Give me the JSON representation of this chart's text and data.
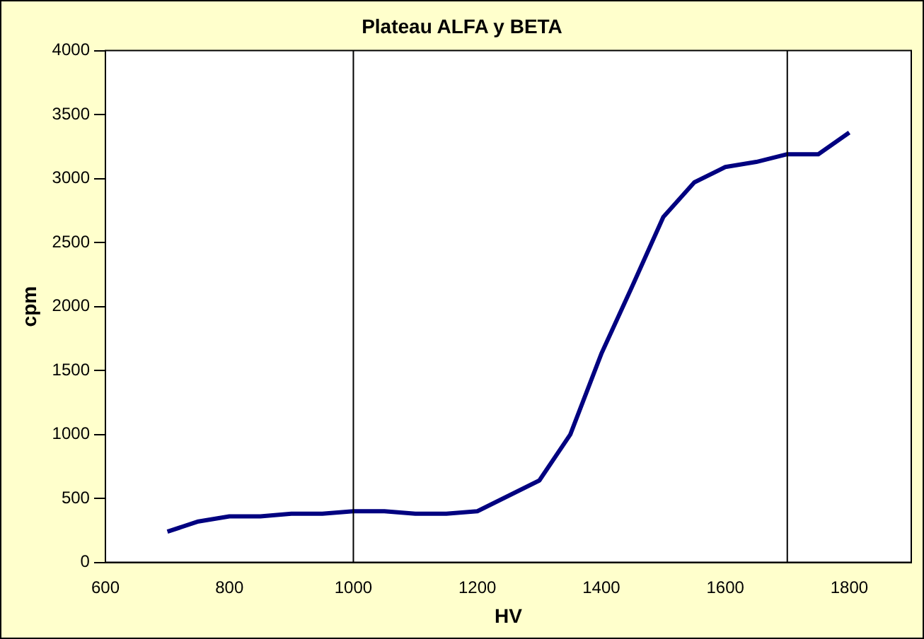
{
  "chart_data": {
    "type": "line",
    "title": "Plateau ALFA y BETA",
    "xlabel": "HV",
    "ylabel": "cpm",
    "x": [
      700,
      750,
      800,
      850,
      900,
      950,
      1000,
      1050,
      1100,
      1150,
      1200,
      1250,
      1300,
      1350,
      1400,
      1450,
      1500,
      1550,
      1600,
      1650,
      1700,
      1750,
      1800
    ],
    "series": [
      {
        "color": "#000080",
        "values": [
          240,
          320,
          360,
          360,
          380,
          380,
          400,
          400,
          380,
          380,
          400,
          520,
          640,
          1000,
          1630,
          2160,
          2700,
          2970,
          3090,
          3130,
          3190,
          3190,
          3360
        ]
      }
    ],
    "xlim": [
      600,
      1900
    ],
    "xticks": [
      600,
      800,
      1000,
      1200,
      1400,
      1600,
      1800
    ],
    "ylim": [
      0,
      4000
    ],
    "yticks": [
      0,
      500,
      1000,
      1500,
      2000,
      2500,
      3000,
      3500,
      4000
    ],
    "ref_lines": [
      {
        "axis": "x",
        "value": 1000,
        "color": "#000000"
      },
      {
        "axis": "x",
        "value": 1700,
        "color": "#000000"
      }
    ],
    "grid": false,
    "legend": false,
    "marker": "none",
    "line_style": "solid"
  }
}
